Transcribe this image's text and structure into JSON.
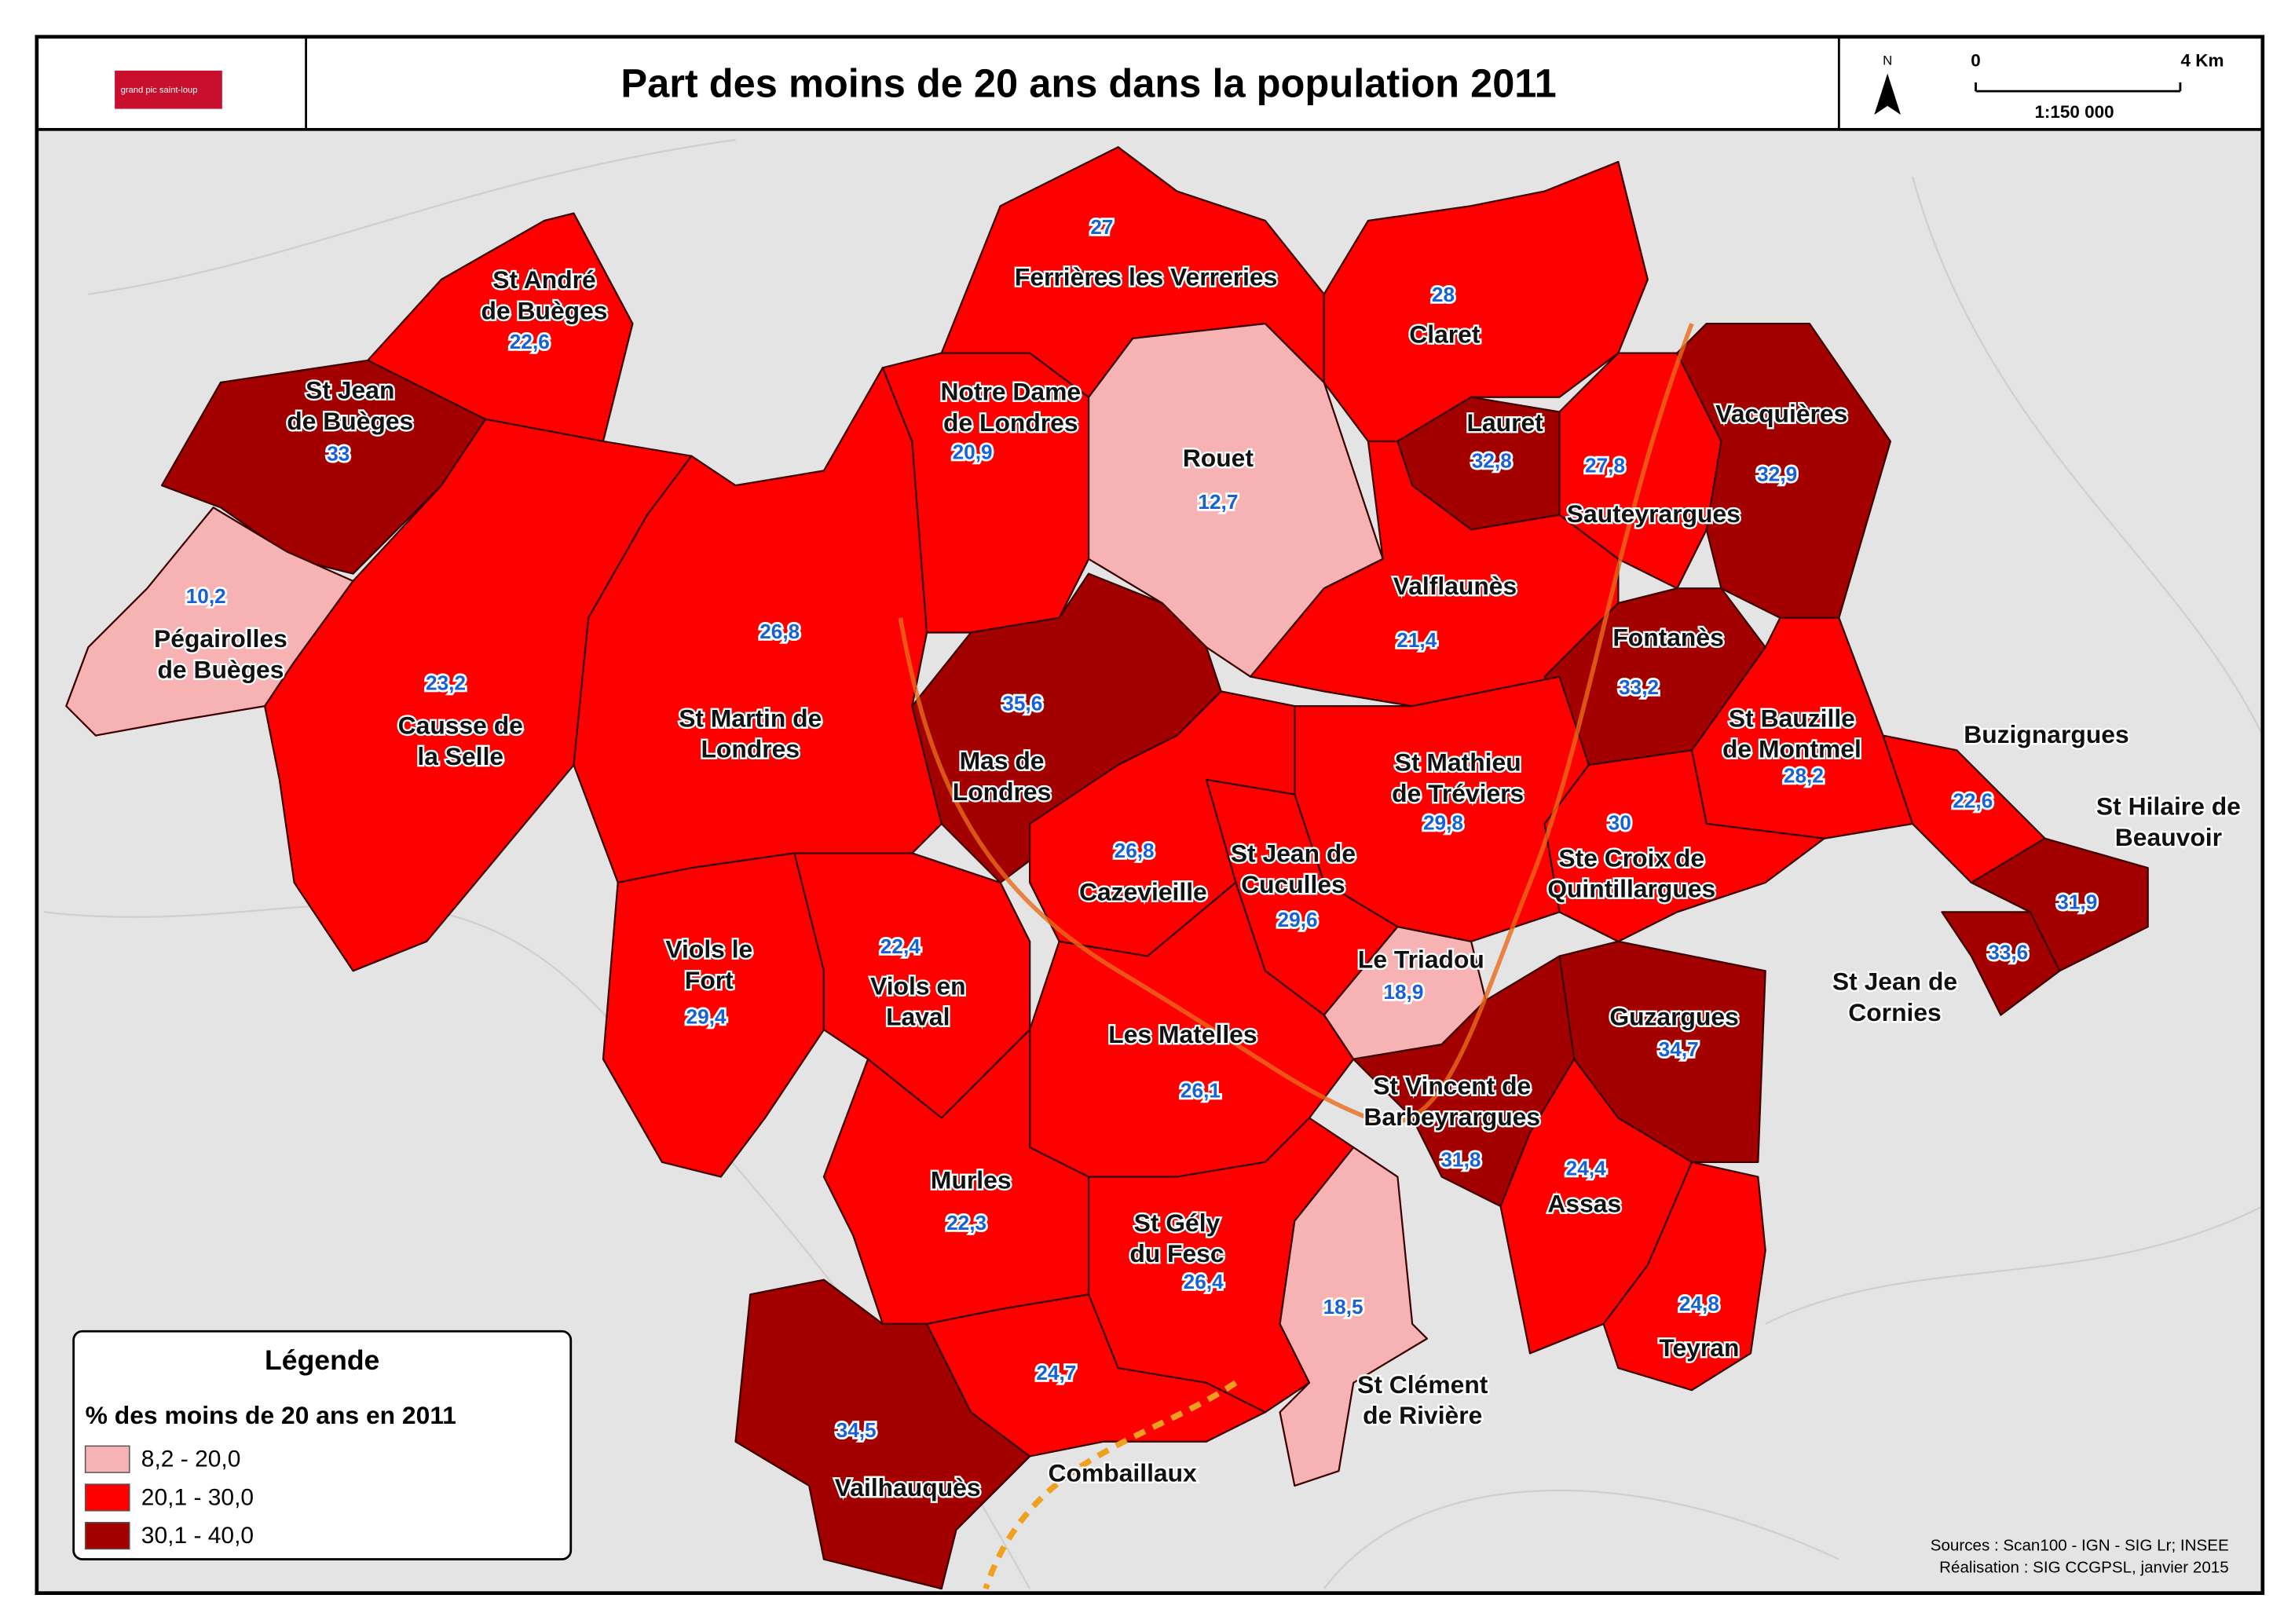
{
  "title": "Part des moins de 20 ans dans la population 2011",
  "logo": "grand pic saint-loup",
  "north": "N",
  "scale": {
    "ticks": [
      0,
      {
        "value": 4,
        "label": "4 Km"
      }
    ],
    "ratio": "1:150 000"
  },
  "legend": {
    "title": "Légende",
    "subtitle": "% des moins de 20 ans en 2011",
    "classes": [
      {
        "label": "8,2 - 20,0",
        "range": [
          8.2,
          20.0
        ],
        "color": "#f7b3b3"
      },
      {
        "label": "20,1 - 30,0",
        "range": [
          20.1,
          30.0
        ],
        "color": "#ff0000"
      },
      {
        "label": "30,1 - 40,0",
        "range": [
          30.1,
          40.0
        ],
        "color": "#a30000"
      }
    ]
  },
  "communes": [
    {
      "name": [
        "St André",
        "de Buèges"
      ],
      "value": 22.6,
      "label": "22,6"
    },
    {
      "name": [
        "St Jean",
        "de Buèges"
      ],
      "value": 33
    },
    {
      "name": [
        "Pégairolles",
        "de Buèges"
      ],
      "value": 10.2,
      "label": "10,2"
    },
    {
      "name": [
        "Causse de",
        "la Selle"
      ],
      "value": 23.2,
      "label": "23,2"
    },
    {
      "name": [
        "St Martin de",
        "Londres"
      ],
      "value": 26.8,
      "label": "26,8"
    },
    {
      "name": [
        "Notre Dame",
        "de Londres"
      ],
      "value": 20.9,
      "label": "20,9"
    },
    {
      "name": [
        "Ferrières les Verreries"
      ],
      "value": 27
    },
    {
      "name": [
        "Rouet"
      ],
      "value": 12.7,
      "label": "12,7"
    },
    {
      "name": [
        "Claret"
      ],
      "value": 28
    },
    {
      "name": [
        "Lauret"
      ],
      "value": 32.8,
      "label": "32,8"
    },
    {
      "name": [
        "Sauteyrargues"
      ],
      "value": 27.8,
      "label": "27,8"
    },
    {
      "name": [
        "Vacquières"
      ],
      "value": 32.9,
      "label": "32,9"
    },
    {
      "name": [
        "Valflaunès"
      ],
      "value": 21.4,
      "label": "21,4"
    },
    {
      "name": [
        "Fontanès"
      ],
      "value": 33.2,
      "label": "33,2"
    },
    {
      "name": [
        "Mas de",
        "Londres"
      ],
      "value": 35.6,
      "label": "35,6"
    },
    {
      "name": [
        "St Bauzille",
        "de Montmel"
      ],
      "value": 28.2,
      "label": "28,2"
    },
    {
      "name": [
        "Buzignargues"
      ],
      "value": 22.6,
      "label": "22,6"
    },
    {
      "name": [
        "St Hilaire de",
        "Beauvoir"
      ],
      "value": 31.9,
      "label": "31,9"
    },
    {
      "name": [
        "St Jean de",
        "Cornies"
      ],
      "value": 33.6,
      "label": "33,6"
    },
    {
      "name": [
        "St Mathieu",
        "de Tréviers"
      ],
      "value": 29.8,
      "label": "29,8"
    },
    {
      "name": [
        "Ste Croix de",
        "Quintillargues"
      ],
      "value": 30
    },
    {
      "name": [
        "St Jean de",
        "Cuculles"
      ],
      "value": 29.6,
      "label": "29,6"
    },
    {
      "name": [
        "Cazevieille"
      ],
      "value": 26.8,
      "label": "26,8"
    },
    {
      "name": [
        "Viols le",
        "Fort"
      ],
      "value": 29.4,
      "label": "29,4"
    },
    {
      "name": [
        "Viols en",
        "Laval"
      ],
      "value": 22.4,
      "label": "22,4"
    },
    {
      "name": [
        "Le Triadou"
      ],
      "value": 18.9,
      "label": "18,9"
    },
    {
      "name": [
        "Les Matelles"
      ],
      "value": 26.1,
      "label": "26,1"
    },
    {
      "name": [
        "Guzargues"
      ],
      "value": 34.7,
      "label": "34,7"
    },
    {
      "name": [
        "St Vincent de",
        "Barbeyrargues"
      ],
      "value": 31.8,
      "label": "31,8"
    },
    {
      "name": [
        "Assas"
      ],
      "value": 24.4,
      "label": "24,4"
    },
    {
      "name": [
        "Murles"
      ],
      "value": 22.3,
      "label": "22,3"
    },
    {
      "name": [
        "St Gély",
        "du Fesc"
      ],
      "value": 26.4,
      "label": "26,4"
    },
    {
      "name": [
        "St Clément",
        "de Rivière"
      ],
      "value": 18.5,
      "label": "18,5"
    },
    {
      "name": [
        "Teyran"
      ],
      "value": 24.8,
      "label": "24,8"
    },
    {
      "name": [
        "Vailhauquès"
      ],
      "value": 34.5,
      "label": "34,5"
    },
    {
      "name": [
        "Combaillaux"
      ],
      "value": 24.7,
      "label": "24,7"
    }
  ],
  "sources": "Sources : Scan100 - IGN - SIG Lr; INSEE",
  "realisation": "Réalisation : SIG CCGPSL, janvier 2015"
}
